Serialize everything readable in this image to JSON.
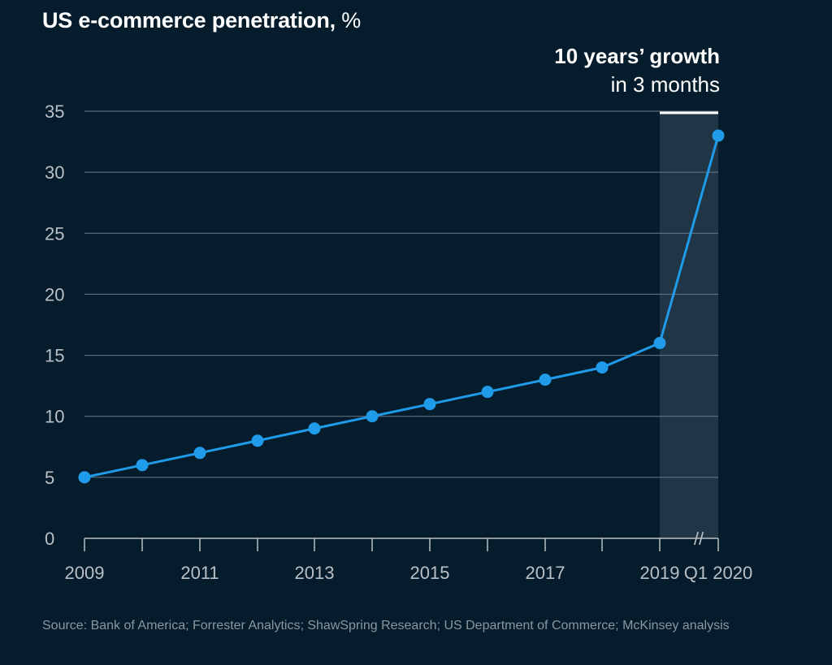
{
  "title": {
    "main": "US e-commerce penetration,",
    "unit": " %"
  },
  "annotation": {
    "bold": "10 years’ growth",
    "light": "in 3 months"
  },
  "source": "Source: Bank of America; Forrester Analytics; ShawSpring Research; US Department of Commerce; McKinsey analysis",
  "colors": {
    "background": "#051C2C",
    "line": "#1F9BEA",
    "grid": "#6B7A85",
    "highlight": "#203545"
  },
  "axis_break_symbol": "//",
  "chart_data": {
    "type": "line",
    "title": "US e-commerce penetration, %",
    "x": [
      "2009",
      "2010",
      "2011",
      "2012",
      "2013",
      "2014",
      "2015",
      "2016",
      "2017",
      "2018",
      "2019",
      "Q1 2020"
    ],
    "x_tick_labels": [
      "2009",
      "2011",
      "2013",
      "2015",
      "2017",
      "2019",
      "Q1 2020"
    ],
    "series": [
      {
        "values": [
          5,
          6,
          7,
          8,
          9,
          10,
          11,
          12,
          13,
          14,
          16,
          33
        ]
      }
    ],
    "yticks": [
      0,
      5,
      10,
      15,
      20,
      25,
      30,
      35
    ],
    "ylim": [
      0,
      35
    ],
    "grid": true,
    "highlight_range": [
      "2019",
      "Q1 2020"
    ],
    "axis_break_between": [
      "2019",
      "Q1 2020"
    ]
  }
}
